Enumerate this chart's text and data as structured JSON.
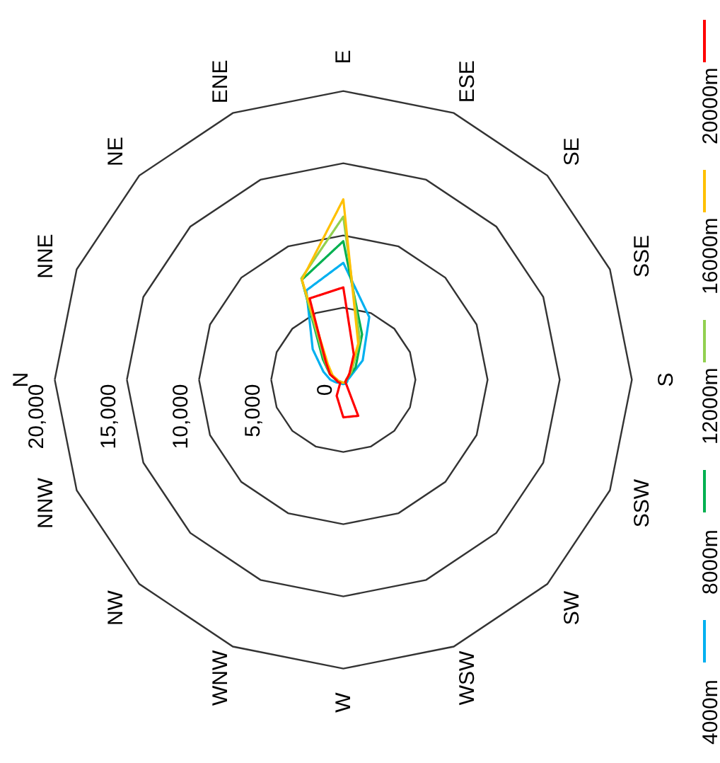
{
  "chart_data": {
    "type": "radar",
    "categories": [
      "N",
      "NNE",
      "NE",
      "ENE",
      "E",
      "ESE",
      "SE",
      "SSE",
      "S",
      "SSW",
      "SW",
      "WSW",
      "W",
      "WNW",
      "NW",
      "NNW"
    ],
    "ylim": [
      0,
      20000
    ],
    "yticks": [
      {
        "value": 0,
        "label": "0"
      },
      {
        "value": 5000,
        "label": "5,000"
      },
      {
        "value": 10000,
        "label": "10,000"
      },
      {
        "value": 15000,
        "label": "15,000"
      },
      {
        "value": 20000,
        "label": "20,000"
      }
    ],
    "grid": true,
    "legend": "right",
    "line_style": "solid",
    "marker": "none",
    "series": [
      {
        "name": "4000m",
        "color": "#00b0f0",
        "values": [
          900,
          1500,
          3000,
          6700,
          8100,
          4700,
          1900,
          500,
          300,
          300,
          300,
          300,
          300,
          300,
          300,
          500
        ]
      },
      {
        "name": "8000m",
        "color": "#00b050",
        "values": [
          500,
          1000,
          2000,
          7500,
          9600,
          3400,
          1200,
          300,
          200,
          200,
          200,
          200,
          200,
          200,
          200,
          300
        ]
      },
      {
        "name": "12000m",
        "color": "#92d050",
        "values": [
          500,
          1000,
          1800,
          7600,
          11300,
          3000,
          800,
          300,
          200,
          200,
          200,
          200,
          200,
          200,
          200,
          300
        ]
      },
      {
        "name": "16000m",
        "color": "#ffc000",
        "values": [
          400,
          800,
          1500,
          7500,
          12500,
          2700,
          600,
          300,
          200,
          200,
          200,
          200,
          200,
          200,
          200,
          300
        ]
      },
      {
        "name": "20000m",
        "color": "#ff0000",
        "values": [
          500,
          1000,
          1700,
          6100,
          6400,
          1900,
          600,
          300,
          200,
          200,
          200,
          2700,
          2600,
          1200,
          300,
          400
        ]
      }
    ]
  }
}
